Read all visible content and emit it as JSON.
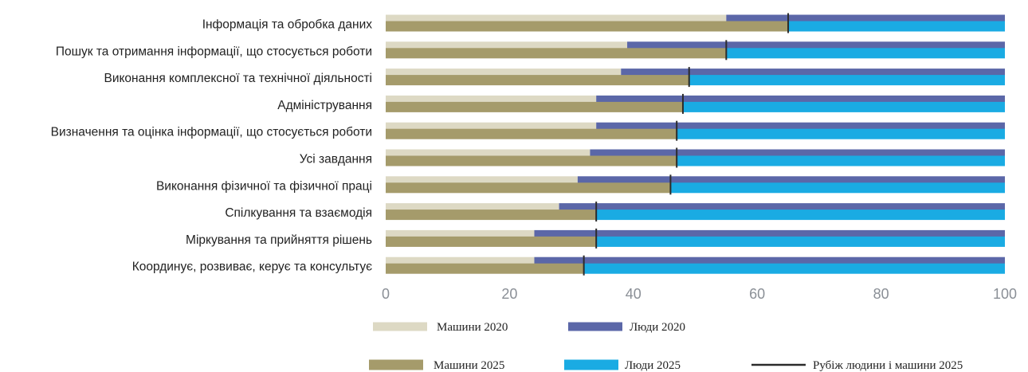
{
  "chart_data": {
    "type": "bar",
    "orientation": "horizontal",
    "stacked": true,
    "categories": [
      "Інформація та обробка даних",
      "Пошук та отримання інформації, що стосується роботи",
      "Виконання комплексної та технічної діяльності",
      "Адміністрування",
      "Визначення та оцінка інформації, що стосується роботи",
      "Усі завдання",
      "Виконання фізичної та фізичної праці",
      "Спілкування та взаємодія",
      "Міркування та прийняття рішень",
      "Координує, розвиває, керує та консультує"
    ],
    "series": [
      {
        "name": "Машини 2020",
        "year": 2020,
        "group": "machines",
        "color": "#ddd9c4",
        "values": [
          55,
          39,
          38,
          34,
          34,
          33,
          31,
          28,
          24,
          24
        ]
      },
      {
        "name": "Люди 2020",
        "year": 2020,
        "group": "humans",
        "color": "#5b67a8",
        "values": [
          45,
          61,
          62,
          66,
          66,
          67,
          69,
          72,
          76,
          76
        ]
      },
      {
        "name": "Машини 2025",
        "year": 2025,
        "group": "machines",
        "color": "#a59b6b",
        "values": [
          65,
          55,
          49,
          48,
          47,
          47,
          46,
          34,
          34,
          32
        ]
      },
      {
        "name": "Люди 2025",
        "year": 2025,
        "group": "humans",
        "color": "#1aabe3",
        "values": [
          35,
          45,
          51,
          52,
          53,
          53,
          54,
          66,
          66,
          68
        ]
      }
    ],
    "boundary_line": {
      "name": "Рубіж людини і машини 2025",
      "color": "#2b2b2b"
    },
    "x_ticks": [
      0,
      20,
      40,
      60,
      80,
      100
    ],
    "xlim": [
      0,
      100
    ],
    "grid": false,
    "legend_position": "bottom",
    "title": "",
    "xlabel": "",
    "ylabel": ""
  }
}
